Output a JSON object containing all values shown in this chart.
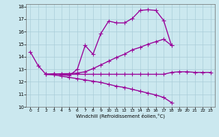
{
  "xlabel": "Windchill (Refroidissement éolien,°C)",
  "xlim": [
    -0.5,
    23.5
  ],
  "ylim": [
    10,
    18.2
  ],
  "yticks": [
    10,
    11,
    12,
    13,
    14,
    15,
    16,
    17,
    18
  ],
  "xticks": [
    0,
    1,
    2,
    3,
    4,
    5,
    6,
    7,
    8,
    9,
    10,
    11,
    12,
    13,
    14,
    15,
    16,
    17,
    18,
    19,
    20,
    21,
    22,
    23
  ],
  "bg_color": "#cbe8ef",
  "grid_color": "#a8ccd8",
  "line_color": "#990099",
  "line_width": 1.0,
  "marker": "+",
  "markersize": 4,
  "markeredgewidth": 0.8,
  "lines": [
    {
      "x": [
        0,
        1,
        2,
        3,
        4,
        5,
        6,
        7,
        8,
        9,
        10,
        11,
        12,
        13,
        14,
        15,
        16,
        17,
        18
      ],
      "y": [
        14.4,
        13.3,
        12.6,
        12.65,
        12.55,
        12.5,
        13.0,
        14.9,
        14.2,
        15.85,
        16.85,
        16.7,
        16.7,
        17.05,
        17.7,
        17.75,
        17.7,
        16.9,
        14.9
      ]
    },
    {
      "x": [
        2,
        3,
        4,
        5,
        6,
        7,
        8,
        9,
        10,
        11,
        12,
        13,
        14,
        15,
        16,
        17,
        18,
        19,
        20,
        21,
        22,
        23
      ],
      "y": [
        12.6,
        12.6,
        12.6,
        12.6,
        12.6,
        12.6,
        12.6,
        12.6,
        12.6,
        12.6,
        12.6,
        12.6,
        12.6,
        12.6,
        12.6,
        12.6,
        12.75,
        12.8,
        12.8,
        12.75,
        12.75,
        12.75
      ]
    },
    {
      "x": [
        2,
        3,
        4,
        5,
        6,
        7,
        8,
        9,
        10,
        11,
        12,
        13,
        14,
        15,
        16,
        17,
        18
      ],
      "y": [
        12.6,
        12.6,
        12.65,
        12.65,
        12.7,
        12.8,
        13.05,
        13.35,
        13.65,
        13.95,
        14.2,
        14.55,
        14.75,
        15.0,
        15.2,
        15.4,
        14.9
      ]
    },
    {
      "x": [
        2,
        3,
        4,
        5,
        6,
        7,
        8,
        9,
        10,
        11,
        12,
        13,
        14,
        15,
        16,
        17,
        18,
        19,
        20,
        21,
        22,
        23
      ],
      "y": [
        12.6,
        12.55,
        12.45,
        12.35,
        12.25,
        12.15,
        12.05,
        11.95,
        11.8,
        11.65,
        11.55,
        11.4,
        11.25,
        11.1,
        10.95,
        10.75,
        10.35,
        null,
        null,
        null,
        null,
        null
      ]
    }
  ]
}
